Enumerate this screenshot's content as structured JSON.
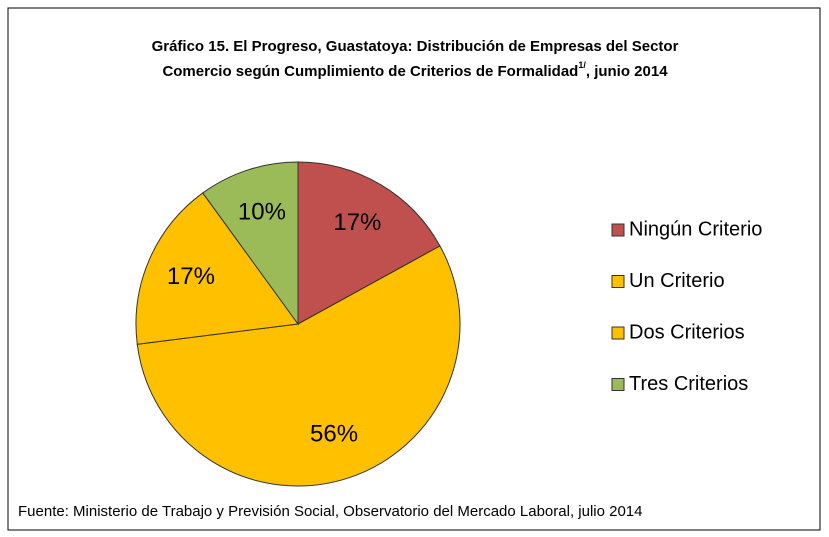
{
  "chart_data": {
    "type": "pie",
    "title": [
      "Gráfico 15. El Progreso, Guastatoya: Distribución de Empresas del Sector",
      "Comercio según Cumplimiento de Criterios de Formalidad"
    ],
    "title_superscript": "1/",
    "title_suffix": ", junio 2014",
    "categories": [
      "Ningún Criterio",
      "Un Criterio",
      "Dos Criterios",
      "Tres Criterios"
    ],
    "values": [
      17,
      56,
      17,
      10
    ],
    "value_labels": [
      "17%",
      "56%",
      "17%",
      "10%"
    ],
    "colors": [
      "#c0504d",
      "#ffc000",
      "#ffc000",
      "#9bbb59"
    ],
    "legend": "right",
    "source": "Fuente: Ministerio de Trabajo y Previsión Social, Observatorio del Mercado Laboral, julio 2014"
  }
}
